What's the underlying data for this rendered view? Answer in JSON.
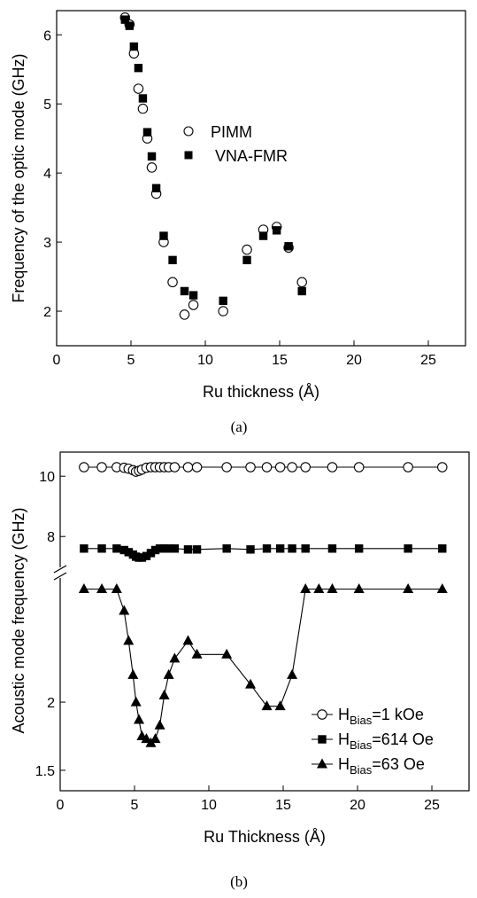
{
  "chart_data": [
    {
      "id": "a",
      "type": "scatter",
      "caption": "(a)",
      "xlabel": "Ru thickness (Å)",
      "ylabel": "Frequency of the optic mode (GHz)",
      "xlim": [
        0,
        27.5
      ],
      "ylim": [
        1.5,
        6.35
      ],
      "xticks": [
        0,
        5,
        10,
        15,
        20,
        25
      ],
      "yticks": [
        2,
        3,
        4,
        5,
        6
      ],
      "legend_position": "center",
      "series": [
        {
          "name": "PIMM",
          "marker": "open-circle",
          "x": [
            4.6,
            4.9,
            5.2,
            5.5,
            5.8,
            6.1,
            6.4,
            6.7,
            7.2,
            7.8,
            8.6,
            9.2,
            11.2,
            12.8,
            13.9,
            14.8,
            15.6,
            16.5
          ],
          "y": [
            6.25,
            6.15,
            5.73,
            5.22,
            4.93,
            4.5,
            4.08,
            3.7,
            3.0,
            2.42,
            1.95,
            2.09,
            2.0,
            2.89,
            3.18,
            3.22,
            2.92,
            2.42
          ]
        },
        {
          "name": "VNA-FMR",
          "marker": "filled-square",
          "x": [
            4.6,
            4.9,
            5.2,
            5.5,
            5.8,
            6.1,
            6.4,
            6.7,
            7.2,
            7.8,
            8.6,
            9.2,
            11.2,
            12.8,
            13.9,
            14.8,
            15.6,
            16.5
          ],
          "y": [
            6.22,
            6.13,
            5.83,
            5.52,
            5.08,
            4.59,
            4.24,
            3.78,
            3.09,
            2.74,
            2.29,
            2.23,
            2.15,
            2.74,
            3.09,
            3.17,
            2.94,
            2.29
          ]
        }
      ]
    },
    {
      "id": "b",
      "type": "line",
      "caption": "(b)",
      "xlabel": "Ru Thickness (Å)",
      "ylabel": "Acoustic mode frequency (GHz)",
      "xlim": [
        0,
        27.5
      ],
      "xticks": [
        0,
        5,
        10,
        15,
        20,
        25
      ],
      "broken_y_axis": true,
      "ylim_upper": [
        6.8,
        10.8
      ],
      "yticks_upper": [
        8,
        10
      ],
      "ylim_lower": [
        1.35,
        2.95
      ],
      "yticks_lower": [
        1.5,
        2.0
      ],
      "legend_position": "bottom-right",
      "series": [
        {
          "name": "H_Bias=1 kOe",
          "legend_main": "H",
          "legend_sub": "Bias",
          "legend_rest": "=1 kOe",
          "marker": "open-circle",
          "segment": "upper",
          "x": [
            1.6,
            2.8,
            3.8,
            4.3,
            4.6,
            4.9,
            5.1,
            5.3,
            5.5,
            5.8,
            6.1,
            6.4,
            6.7,
            7.0,
            7.3,
            7.7,
            8.6,
            9.2,
            11.2,
            12.8,
            13.9,
            14.8,
            15.6,
            16.5,
            18.3,
            20.1,
            23.4,
            25.7
          ],
          "y": [
            10.3,
            10.3,
            10.3,
            10.28,
            10.25,
            10.2,
            10.15,
            10.18,
            10.22,
            10.28,
            10.3,
            10.3,
            10.3,
            10.3,
            10.3,
            10.3,
            10.3,
            10.3,
            10.3,
            10.3,
            10.3,
            10.3,
            10.3,
            10.3,
            10.3,
            10.3,
            10.3,
            10.3
          ]
        },
        {
          "name": "H_Bias=614 Oe",
          "legend_main": "H",
          "legend_sub": "Bias",
          "legend_rest": "=614 Oe",
          "marker": "filled-square",
          "segment": "upper",
          "x": [
            1.6,
            2.8,
            3.8,
            4.3,
            4.6,
            4.9,
            5.1,
            5.3,
            5.5,
            5.8,
            6.1,
            6.4,
            6.7,
            7.0,
            7.3,
            7.7,
            8.6,
            9.2,
            11.2,
            12.8,
            13.9,
            14.8,
            15.6,
            16.5,
            18.3,
            20.1,
            23.4,
            25.7
          ],
          "y": [
            7.6,
            7.6,
            7.6,
            7.55,
            7.48,
            7.4,
            7.33,
            7.3,
            7.3,
            7.35,
            7.45,
            7.55,
            7.6,
            7.6,
            7.6,
            7.6,
            7.57,
            7.57,
            7.6,
            7.57,
            7.6,
            7.6,
            7.6,
            7.6,
            7.6,
            7.6,
            7.6,
            7.6
          ]
        },
        {
          "name": "H_Bias=63 Oe",
          "legend_main": "H",
          "legend_sub": "Bias",
          "legend_rest": "=63 Oe",
          "marker": "filled-triangle",
          "segment": "lower",
          "x": [
            1.6,
            2.8,
            3.8,
            4.3,
            4.6,
            4.9,
            5.1,
            5.3,
            5.5,
            5.8,
            6.1,
            6.4,
            6.7,
            7.0,
            7.3,
            7.7,
            8.6,
            9.2,
            11.2,
            12.8,
            13.9,
            14.8,
            15.6,
            16.5,
            17.4,
            18.3,
            20.1,
            23.4,
            25.7
          ],
          "y": [
            2.83,
            2.83,
            2.83,
            2.67,
            2.45,
            2.2,
            2.0,
            1.87,
            1.75,
            1.73,
            1.7,
            1.73,
            1.83,
            2.05,
            2.2,
            2.32,
            2.45,
            2.35,
            2.35,
            2.13,
            1.97,
            1.97,
            2.2,
            2.83,
            2.83,
            2.83,
            2.83,
            2.83,
            2.83
          ]
        }
      ]
    }
  ]
}
